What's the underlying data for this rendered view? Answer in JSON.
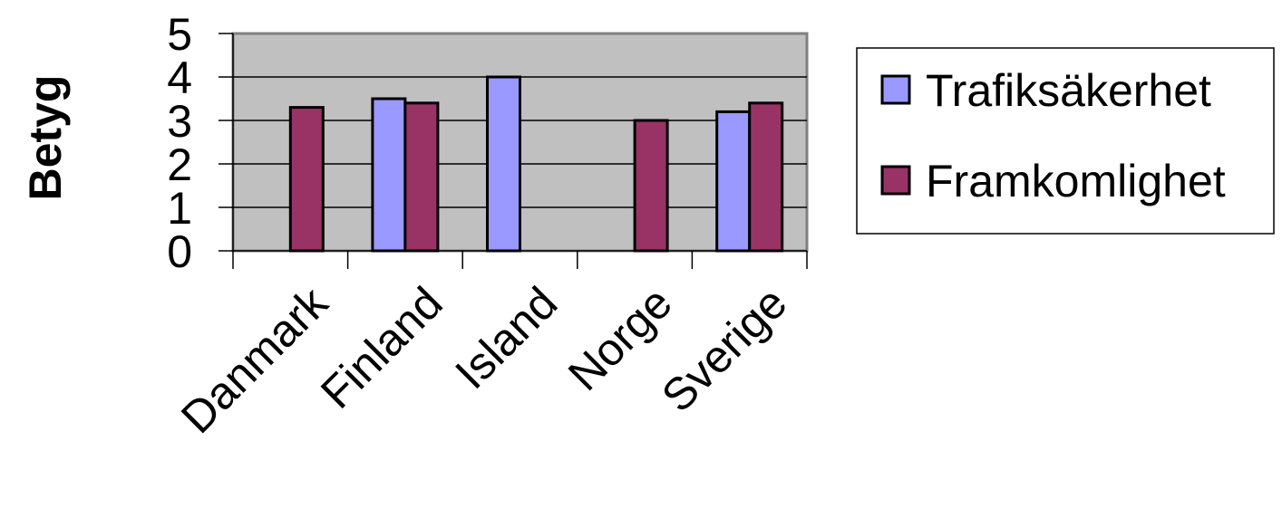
{
  "chart_data": {
    "type": "bar",
    "title": "",
    "xlabel": "",
    "ylabel": "Betyg",
    "ylim": [
      0,
      5
    ],
    "yticks": [
      "0",
      "1",
      "2",
      "3",
      "4",
      "5"
    ],
    "grid": true,
    "legend_position": "right",
    "categories": [
      "Danmark",
      "Finland",
      "Island",
      "Norge",
      "Sverige"
    ],
    "series": [
      {
        "name": "Trafiksäkerhet",
        "color": "#9999ff",
        "values": [
          null,
          3.5,
          4.0,
          null,
          3.2
        ]
      },
      {
        "name": "Framkomlighet",
        "color": "#993366",
        "values": [
          3.3,
          3.4,
          null,
          3.0,
          3.4
        ]
      }
    ],
    "plot_background": "#c0c0c0"
  }
}
